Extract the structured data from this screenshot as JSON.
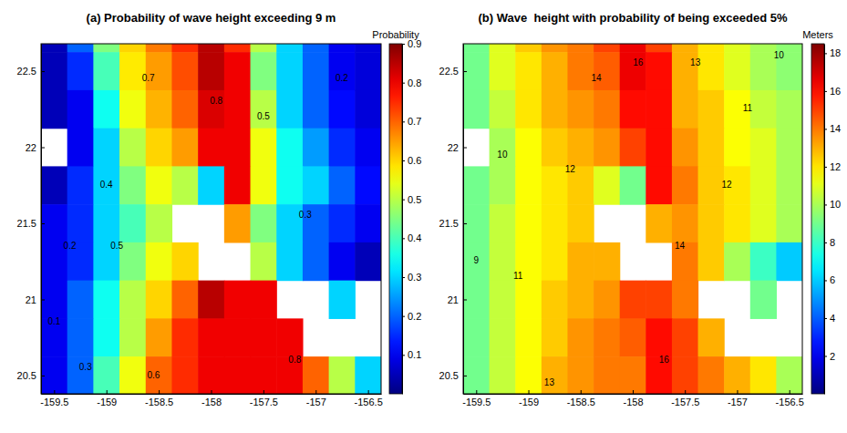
{
  "chart_data": [
    {
      "type": "heatmap",
      "panel": "(a)",
      "title": "Probability of wave height exceeding 9 m",
      "colorbar_title": "Probability",
      "x": [
        -159.5,
        -159.25,
        -159.0,
        -158.75,
        -158.5,
        -158.25,
        -158.0,
        -157.75,
        -157.5,
        -157.25,
        -157.0,
        -156.75,
        -156.5
      ],
      "y": [
        22.75,
        22.5,
        22.25,
        22,
        21.75,
        21.5,
        21.25,
        21,
        20.75,
        20.5
      ],
      "cells": [
        [
          0.05,
          0.2,
          0.45,
          0.6,
          0.68,
          0.75,
          0.85,
          0.75,
          0.5,
          0.3,
          0.2,
          0.1,
          0.08
        ],
        [
          0.05,
          0.15,
          0.4,
          0.58,
          0.65,
          0.72,
          0.85,
          0.8,
          0.45,
          0.3,
          0.2,
          0.1,
          0.08
        ],
        [
          0.05,
          0.1,
          0.35,
          0.55,
          0.63,
          0.7,
          0.82,
          0.8,
          0.5,
          0.3,
          0.2,
          0.12,
          0.08
        ],
        [
          null,
          0.1,
          0.3,
          0.5,
          0.6,
          0.65,
          0.8,
          0.8,
          0.55,
          0.35,
          0.25,
          0.15,
          0.1
        ],
        [
          0.05,
          0.15,
          0.3,
          0.45,
          0.55,
          0.5,
          0.3,
          0.8,
          0.55,
          0.35,
          0.3,
          0.2,
          0.12
        ],
        [
          0.1,
          0.15,
          0.3,
          0.4,
          0.5,
          null,
          null,
          0.65,
          0.45,
          0.3,
          0.2,
          0.15,
          0.1
        ],
        [
          0.1,
          0.15,
          0.3,
          0.45,
          0.55,
          0.6,
          null,
          null,
          0.5,
          0.3,
          0.2,
          0.1,
          0.05
        ],
        [
          0.1,
          0.2,
          0.35,
          0.5,
          0.6,
          0.7,
          0.85,
          0.8,
          0.8,
          null,
          null,
          0.3,
          null
        ],
        [
          0.1,
          0.2,
          0.35,
          0.5,
          0.65,
          0.75,
          0.8,
          0.8,
          0.8,
          0.8,
          null,
          null,
          null
        ],
        [
          0.1,
          0.2,
          0.4,
          0.55,
          0.7,
          0.75,
          0.8,
          0.8,
          0.8,
          0.8,
          0.7,
          0.5,
          0.3
        ]
      ],
      "xlim": [
        -159.625,
        -156.375
      ],
      "ylim": [
        20.38,
        22.68
      ],
      "xticks": [
        -159.5,
        -159,
        -158.5,
        -158,
        -157.5,
        -157,
        -156.5
      ],
      "yticks": [
        20.5,
        21,
        21.5,
        22,
        22.5
      ],
      "clim": [
        0,
        0.9
      ],
      "cticks": [
        0.1,
        0.2,
        0.3,
        0.4,
        0.5,
        0.6,
        0.7,
        0.8,
        0.9
      ],
      "annotations": [
        {
          "level": 0.1,
          "x": -159.5,
          "y": 20.85
        },
        {
          "level": 0.2,
          "x": -159.35,
          "y": 21.35
        },
        {
          "level": 0.3,
          "x": -159.2,
          "y": 20.55
        },
        {
          "level": 0.4,
          "x": -159.0,
          "y": 21.75
        },
        {
          "level": 0.5,
          "x": -158.9,
          "y": 21.35
        },
        {
          "level": 0.6,
          "x": -158.55,
          "y": 20.5
        },
        {
          "level": 0.7,
          "x": -158.6,
          "y": 22.45
        },
        {
          "level": 0.8,
          "x": -157.95,
          "y": 22.3
        },
        {
          "level": 0.5,
          "x": -157.5,
          "y": 22.2
        },
        {
          "level": 0.3,
          "x": -157.1,
          "y": 21.55
        },
        {
          "level": 0.2,
          "x": -156.75,
          "y": 22.45
        },
        {
          "level": 0.8,
          "x": -157.2,
          "y": 20.6
        }
      ]
    },
    {
      "type": "heatmap",
      "panel": "(b)",
      "title": "Wave  height with probability of being exceeded 5%",
      "colorbar_title": "Meters",
      "x": [
        -159.5,
        -159.25,
        -159.0,
        -158.75,
        -158.5,
        -158.25,
        -158.0,
        -157.75,
        -157.5,
        -157.25,
        -157.0,
        -156.75,
        -156.5
      ],
      "y": [
        22.75,
        22.5,
        22.25,
        22,
        21.75,
        21.5,
        21.25,
        21,
        20.75,
        20.5
      ],
      "cells": [
        [
          9,
          11,
          12.5,
          13.5,
          14,
          15,
          16.5,
          15,
          13,
          12,
          11,
          10,
          9.5
        ],
        [
          9,
          11,
          12,
          13,
          14,
          14.5,
          16.5,
          16,
          13,
          12,
          11,
          10,
          9.5
        ],
        [
          9,
          10.5,
          12,
          13,
          13.5,
          14,
          16,
          16,
          13,
          12.5,
          11.5,
          10.5,
          10
        ],
        [
          null,
          10,
          11.5,
          12.5,
          13,
          13.5,
          15,
          16,
          13.5,
          12.5,
          11.5,
          11,
          10
        ],
        [
          9,
          10,
          11.5,
          12,
          12.5,
          11,
          9,
          16,
          14,
          12.5,
          12,
          11,
          10
        ],
        [
          9,
          10.5,
          11.5,
          12,
          12.5,
          null,
          null,
          13,
          13.5,
          12.5,
          12,
          11,
          10
        ],
        [
          9,
          10.5,
          11.5,
          12,
          13,
          13,
          null,
          null,
          14,
          12.5,
          10,
          8,
          6
        ],
        [
          9,
          10.5,
          11.5,
          12.5,
          13,
          13.5,
          15,
          15,
          14,
          null,
          null,
          9,
          null
        ],
        [
          9,
          10.5,
          11.5,
          12.5,
          13.5,
          14,
          14.5,
          16,
          15,
          13,
          null,
          null,
          null
        ],
        [
          9,
          10.5,
          11.5,
          13,
          13.5,
          14,
          14,
          16,
          15,
          14,
          13,
          12,
          10
        ]
      ],
      "xlim": [
        -159.625,
        -156.375
      ],
      "ylim": [
        20.38,
        22.68
      ],
      "xticks": [
        -159.5,
        -159,
        -158.5,
        -158,
        -157.5,
        -157,
        -156.5
      ],
      "yticks": [
        20.5,
        21,
        21.5,
        22,
        22.5
      ],
      "clim": [
        0,
        18.5
      ],
      "cticks": [
        2,
        4,
        6,
        8,
        10,
        12,
        14,
        16,
        18
      ],
      "annotations": [
        {
          "level": 9,
          "x": -159.5,
          "y": 21.25
        },
        {
          "level": 10,
          "x": -159.25,
          "y": 21.95
        },
        {
          "level": 11,
          "x": -159.1,
          "y": 21.15
        },
        {
          "level": 12,
          "x": -158.6,
          "y": 21.85
        },
        {
          "level": 13,
          "x": -158.8,
          "y": 20.45
        },
        {
          "level": 14,
          "x": -158.35,
          "y": 22.45
        },
        {
          "level": 16,
          "x": -157.95,
          "y": 22.55
        },
        {
          "level": 14,
          "x": -157.55,
          "y": 21.35
        },
        {
          "level": 13,
          "x": -157.4,
          "y": 22.55
        },
        {
          "level": 12,
          "x": -157.1,
          "y": 21.75
        },
        {
          "level": 11,
          "x": -156.9,
          "y": 22.25
        },
        {
          "level": 10,
          "x": -156.6,
          "y": 22.6
        },
        {
          "level": 16,
          "x": -157.7,
          "y": 20.6
        }
      ]
    }
  ]
}
